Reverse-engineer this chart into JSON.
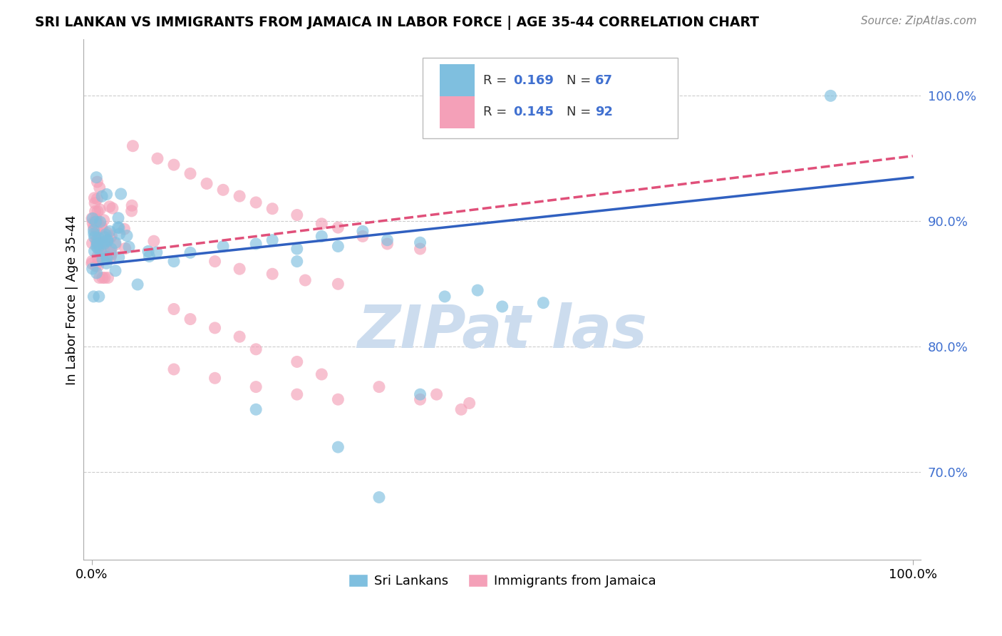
{
  "title": "SRI LANKAN VS IMMIGRANTS FROM JAMAICA IN LABOR FORCE | AGE 35-44 CORRELATION CHART",
  "source": "Source: ZipAtlas.com",
  "ylabel": "In Labor Force | Age 35-44",
  "legend_blue_label": "Sri Lankans",
  "legend_pink_label": "Immigrants from Jamaica",
  "r_blue": "0.169",
  "n_blue": "67",
  "r_pink": "0.145",
  "n_pink": "92",
  "blue_color": "#7fbfdf",
  "pink_color": "#f4a0b8",
  "line_blue_color": "#3060c0",
  "line_pink_color": "#e0507a",
  "text_blue_color": "#4070d0",
  "watermark_color": "#ccdcee",
  "ylim_low": 0.63,
  "ylim_high": 1.045,
  "xlim_low": -0.01,
  "xlim_high": 1.01,
  "ytick_vals": [
    0.7,
    0.8,
    0.9,
    1.0
  ],
  "ytick_labels": [
    "70.0%",
    "80.0%",
    "90.0%",
    "100.0%"
  ],
  "xtick_vals": [
    0.0,
    1.0
  ],
  "xtick_labels": [
    "0.0%",
    "100.0%"
  ],
  "blue_line_x0": 0.0,
  "blue_line_y0": 0.865,
  "blue_line_x1": 1.0,
  "blue_line_y1": 0.935,
  "pink_line_x0": 0.0,
  "pink_line_y0": 0.872,
  "pink_line_x1": 1.0,
  "pink_line_y1": 0.952
}
